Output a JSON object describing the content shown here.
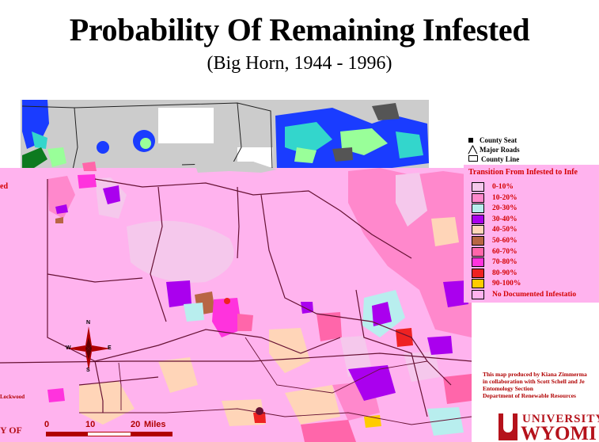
{
  "title": "Probability Of Remaining Infested",
  "subtitle": "(Big Horn, 1944 - 1996)",
  "legend": {
    "features": [
      "County Seat",
      "Major Roads",
      "County Line"
    ],
    "title": "Transition From Infested to Infe",
    "classes": [
      {
        "label": "0-10%",
        "color": "#f5c8ec"
      },
      {
        "label": "10-20%",
        "color": "#ff88cc"
      },
      {
        "label": "20-30%",
        "color": "#b8eeee"
      },
      {
        "label": "30-40%",
        "color": "#aa00ee"
      },
      {
        "label": "40-50%",
        "color": "#ffd5b8"
      },
      {
        "label": "50-60%",
        "color": "#b86644"
      },
      {
        "label": "60-70%",
        "color": "#ff66aa"
      },
      {
        "label": "70-80%",
        "color": "#ff33dd"
      },
      {
        "label": "80-90%",
        "color": "#ee2222"
      },
      {
        "label": "90-100%",
        "color": "#ffcc00"
      },
      {
        "label": "No Documented Infestatio",
        "color": "#ffb3ee"
      }
    ]
  },
  "credit": [
    "This map produced by Kiana Zimmerma",
    "in collaboration with Scott Schell and Je",
    "Entomology Section",
    "Department of Renewable Resources"
  ],
  "logo": {
    "top": "UNIVERSITY",
    "bottom": "WYOMI"
  },
  "left_fragments": {
    "legend_word": "ed",
    "credit_word": "Lockwood",
    "logo_word": "Y OF"
  },
  "scale": {
    "ticks": [
      "0",
      "10",
      "20"
    ],
    "unit": "Miles"
  },
  "compass": {
    "n": "N",
    "s": "S",
    "e": "E",
    "w": "W"
  },
  "colors": {
    "upper_bg": "#cccccc",
    "lower_bg": "#ffb3ee",
    "upper_blue": "#1a3cff",
    "upper_cyan": "#33d6cc",
    "upper_green": "#99ff99",
    "upper_darkgreen": "#0d7a1f",
    "upper_darkgray": "#555555",
    "boundary": "#661133"
  }
}
